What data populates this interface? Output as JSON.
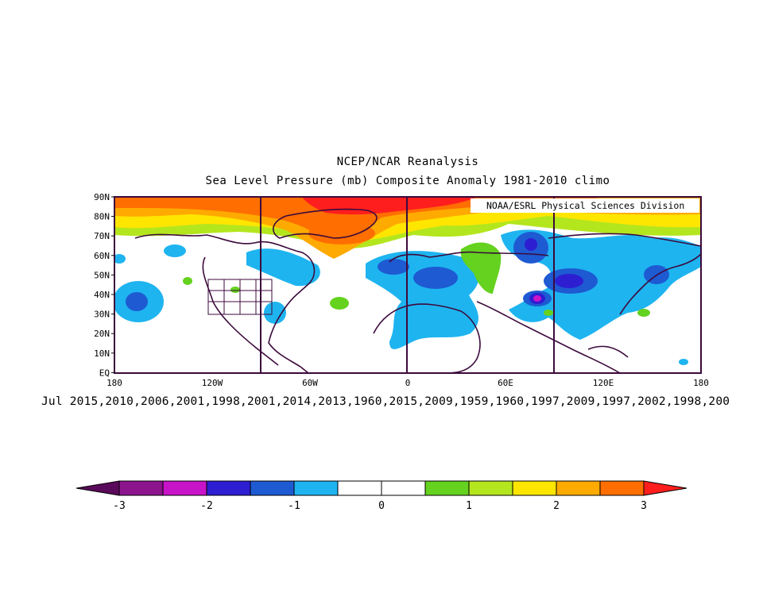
{
  "title_line1": "NCEP/NCAR Reanalysis",
  "title_line2": "Sea Level Pressure (mb) Composite Anomaly 1981-2010 climo",
  "credit": "NOAA/ESRL Physical Sciences Division",
  "composite_years": "Jul 2015,2010,2006,2001,1998,2001,2014,2013,1960,2015,2009,1959,1960,1997,2009,1997,2002,1998,200",
  "lat_labels": [
    "90N",
    "80N",
    "70N",
    "60N",
    "50N",
    "40N",
    "30N",
    "20N",
    "10N",
    "EQ"
  ],
  "lon_labels": [
    "180",
    "120W",
    "60W",
    "0",
    "60E",
    "120E",
    "180"
  ],
  "colorbar": {
    "ticks": [
      "-3",
      "-2",
      "-1",
      "0",
      "1",
      "2",
      "3"
    ],
    "colors": [
      "#5a0a5a",
      "#8c148c",
      "#c814c8",
      "#2e1ed2",
      "#1e5ad2",
      "#1eb4f0",
      "#ffffff",
      "#ffffff",
      "#64d21e",
      "#b4e61e",
      "#ffe600",
      "#ffaa00",
      "#ff6e00",
      "#ff1e1e"
    ]
  }
}
